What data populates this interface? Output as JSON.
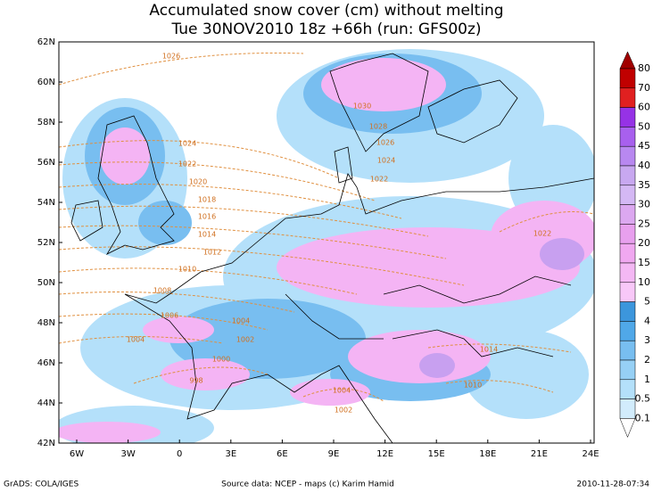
{
  "header": {
    "title": "Accumulated snow cover (cm) without melting",
    "subtitle": "Tue 30NOV2010 18z  +66h (run: GFS00z)"
  },
  "map": {
    "lat_labels": [
      "62N",
      "60N",
      "58N",
      "56N",
      "54N",
      "52N",
      "50N",
      "48N",
      "46N",
      "44N",
      "42N"
    ],
    "lon_labels": [
      "6W",
      "3W",
      "0",
      "3E",
      "6E",
      "9E",
      "12E",
      "15E",
      "18E",
      "21E",
      "24E"
    ],
    "isobar_labels": [
      "1026",
      "1030",
      "1028",
      "1026",
      "1024",
      "1022",
      "1024",
      "1022",
      "1020",
      "1018",
      "1016",
      "1014",
      "1012",
      "1010",
      "1008",
      "1006",
      "1004",
      "1004",
      "1002",
      "1000",
      "998",
      "1004",
      "1002",
      "1014",
      "1010",
      "1022"
    ]
  },
  "legend": {
    "labels": [
      "80",
      "70",
      "60",
      "50",
      "45",
      "40",
      "35",
      "30",
      "25",
      "20",
      "15",
      "10",
      "5",
      "4",
      "3",
      "2",
      "1",
      "0.5",
      "0.1"
    ]
  },
  "footer": {
    "left": "GrADS: COLA/IGES",
    "center": "Source data: NCEP - maps (c) Karim Hamid",
    "right": "2010-11-28-07:34"
  }
}
